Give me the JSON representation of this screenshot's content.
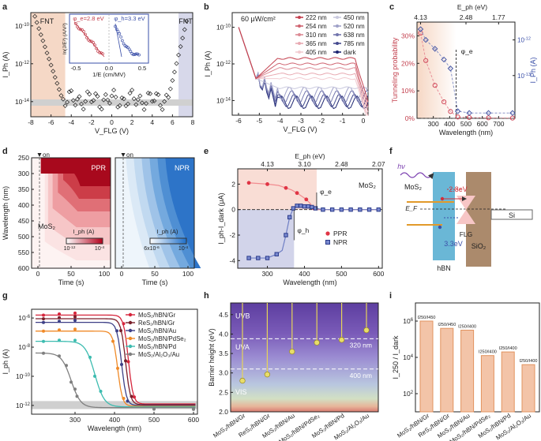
{
  "panel_labels": [
    "a",
    "b",
    "c",
    "d",
    "e",
    "f",
    "g",
    "h",
    "i"
  ],
  "chart_data": [
    {
      "panel": "a",
      "type": "scatter",
      "xlabel": "V_FLG (V)",
      "ylabel": "I_Ph (A)",
      "x_ticks": [
        "-8",
        "-6",
        "-4",
        "-2",
        "0",
        "2",
        "4",
        "6",
        "8"
      ],
      "y_ticks": [
        "10^-10",
        "10^-12",
        "10^-14"
      ],
      "region_labels": [
        "FNT",
        "FNT"
      ],
      "inset": {
        "xlabel": "1/E (cm/MV)",
        "ylabel": "ln(J/E²) (A/V²)",
        "x_ticks": [
          "-0.5",
          "0.0",
          "0.5"
        ],
        "annotations": [
          "φ_e=2.8 eV",
          "φ_h=3.3 eV"
        ]
      }
    },
    {
      "panel": "b",
      "type": "line",
      "xlabel": "V_FLG (V)",
      "ylabel": "I_Ph (A)",
      "x_ticks": [
        "-6",
        "-5",
        "-4",
        "-3",
        "-2",
        "-1",
        "0"
      ],
      "y_ticks": [
        "10^-10",
        "10^-12",
        "10^-14"
      ],
      "annotation": "60 μW/cm²",
      "series": [
        {
          "name": "222 nm",
          "color": "#c3404e",
          "plateau_exp": -11.7
        },
        {
          "name": "254 nm",
          "color": "#cf6370",
          "plateau_exp": -12.0
        },
        {
          "name": "310 nm",
          "color": "#dc8a94",
          "plateau_exp": -12.25
        },
        {
          "name": "365 nm",
          "color": "#e8aab2",
          "plateau_exp": -12.55
        },
        {
          "name": "405 nm",
          "color": "#f2cbd0",
          "plateau_exp": -12.8
        },
        {
          "name": "450 nm",
          "color": "#c9c9de",
          "plateau_exp": -13.3
        },
        {
          "name": "520 nm",
          "color": "#9ea0c8",
          "plateau_exp": -13.6
        },
        {
          "name": "638 nm",
          "color": "#7175ad",
          "plateau_exp": -13.8
        },
        {
          "name": "785 nm",
          "color": "#454b8f",
          "plateau_exp": -14.0
        },
        {
          "name": "dark",
          "color": "#1c2470",
          "plateau_exp": -14.1
        }
      ]
    },
    {
      "panel": "c",
      "type": "line",
      "title": "E_ph (eV)",
      "top_ticks": [
        "4.13",
        "2.48",
        "1.77"
      ],
      "xlabel": "Wavelength (nm)",
      "ylabel": "Tunneling probability",
      "ylabel_right": "I_Ph (A)",
      "x_ticks": [
        "300",
        "400",
        "500",
        "600",
        "700"
      ],
      "y_ticks": [
        "0%",
        "10%",
        "20%",
        "30%"
      ],
      "right_ticks": [
        "10^-12",
        "10^-13"
      ],
      "marker_label": "φ_e",
      "series": [
        {
          "name": "Tunneling probability",
          "color": "#d0495a",
          "x": [
            222,
            254,
            310,
            365,
            405,
            450,
            520,
            638,
            785
          ],
          "y": [
            31,
            21,
            12,
            6,
            2.5,
            0.5,
            0.3,
            0.2,
            0.1
          ]
        },
        {
          "name": "I_Ph",
          "color": "#4a5aa6",
          "x": [
            222,
            254,
            310,
            365,
            405,
            450,
            520,
            638,
            785
          ],
          "y": [
            -11.7,
            -12.0,
            -12.25,
            -12.55,
            -12.8,
            -14.0,
            -14.05,
            -14.05,
            -14.05
          ]
        }
      ]
    },
    {
      "panel": "d",
      "type": "heatmap",
      "ylabel": "Wavelength (nm)",
      "xlabel": "Time (s)",
      "y_ticks": [
        "250",
        "300",
        "350",
        "400",
        "450",
        "500",
        "550",
        "600"
      ],
      "x_ticks": [
        "0",
        "50",
        "100"
      ],
      "left": {
        "label": "PPR",
        "material": "MoS₂",
        "cbar_label": "I_ph (A)",
        "cbar_ticks": [
          "10^-12",
          "10^-4"
        ],
        "on": "on"
      },
      "right": {
        "label": "NPR",
        "cbar_label": "I_ph (A)",
        "cbar_ticks": [
          "6x10^-6",
          "10^-4"
        ],
        "on": "on"
      }
    },
    {
      "panel": "e",
      "type": "scatter",
      "title": "E_ph (eV)",
      "top_ticks": [
        "4.13",
        "3.10",
        "2.48",
        "2.07"
      ],
      "xlabel": "Wavelength (nm)",
      "ylabel": "I_ph-I_dark (μA)",
      "x_ticks": [
        "300",
        "400",
        "500",
        "600"
      ],
      "y_ticks": [
        "2",
        "0",
        "-2",
        "-4"
      ],
      "material": "MoS₂",
      "markers": [
        "φ_e",
        "φ_h"
      ],
      "series": [
        {
          "name": "PPR",
          "color": "#e03545",
          "x": [
            250,
            300,
            330,
            350,
            365,
            380,
            395,
            405,
            415,
            425,
            435,
            450,
            475,
            500,
            525,
            550,
            575,
            600
          ],
          "y": [
            2.1,
            2.0,
            1.9,
            1.7,
            1.55,
            1.3,
            1.0,
            0.8,
            0.5,
            0.1,
            0,
            0,
            0,
            0,
            0,
            0,
            0,
            0
          ]
        },
        {
          "name": "NPR",
          "color": "#3a4fa8",
          "x": [
            250,
            275,
            300,
            325,
            340,
            350,
            360,
            370,
            380,
            390,
            400,
            410,
            420,
            430,
            440,
            450,
            475,
            500,
            525,
            550,
            575,
            600
          ],
          "y": [
            -3.8,
            -3.8,
            -3.8,
            -3.5,
            -3.2,
            -2.0,
            -0.6,
            0.1,
            0.3,
            0.3,
            0.25,
            0.25,
            0.2,
            0.1,
            0.05,
            0,
            0,
            0,
            0,
            0,
            0,
            0
          ]
        }
      ]
    },
    {
      "panel": "g",
      "type": "line",
      "xlabel": "Wavelength (nm)",
      "ylabel": "I_ph (A)",
      "x_ticks": [
        "300",
        "400",
        "500",
        "600"
      ],
      "y_ticks": [
        "10^-6",
        "10^-8",
        "10^-10",
        "10^-12"
      ],
      "series": [
        {
          "name": "MoS₂/hBN/Gr",
          "color": "#d6253c",
          "cutoff": 435
        },
        {
          "name": "ReS₂/hBN/Gr",
          "color": "#7a1f2b",
          "cutoff": 428
        },
        {
          "name": "MoS₂/hBN/Au",
          "color": "#3d3f86",
          "cutoff": 418
        },
        {
          "name": "MoS₂/hBN/PdSe₂",
          "color": "#f08a28",
          "cutoff": 408
        },
        {
          "name": "MoS₂/hBN/Pd",
          "color": "#3dbcb0",
          "cutoff": 350
        },
        {
          "name": "MoS₂/Al₂O₃/Au",
          "color": "#7f7f7f",
          "cutoff": 290
        }
      ]
    },
    {
      "panel": "h",
      "type": "bar",
      "ylabel": "Barrier height (eV)",
      "y_ticks": [
        "2.0",
        "2.5",
        "3.0",
        "3.5",
        "4.0",
        "4.5"
      ],
      "ylim": [
        2.0,
        4.8
      ],
      "bands": [
        "UVB",
        "UVA",
        "VIS"
      ],
      "lines": [
        "320 nm",
        "400 nm"
      ],
      "categories": [
        "MoS₂/hBN/Gr",
        "ReS₂/hBN/Gr",
        "MoS₂/hBN/Au",
        "MoS₂/hBN/PdSe₂",
        "MoS₂/hBN/Pd",
        "MoS₂/Al₂O₃/Au"
      ],
      "values": [
        2.8,
        2.96,
        3.55,
        3.78,
        3.85,
        4.1
      ]
    },
    {
      "panel": "i",
      "type": "bar",
      "ylabel": "I_250 / I_dark",
      "y_ticks": [
        "10^2",
        "10^4",
        "10^6"
      ],
      "categories": [
        "MoS₂/hBN/Gr",
        "ReS₂/hBN/Gr",
        "MoS₂/hBN/Au",
        "MoS₂/hBN/PdSe₂",
        "MoS₂/hBN/Pd",
        "MoS₂/Al₂O₃/Au"
      ],
      "ratio_labels": [
        "I250/I450",
        "I250/I450",
        "I250/I400",
        "I250/I400",
        "I250/I400",
        "I250/I400"
      ],
      "values_log10": [
        6.0,
        5.6,
        5.5,
        4.1,
        4.3,
        3.6
      ]
    }
  ],
  "panel_f": {
    "labels": {
      "hv": "hν",
      "mos2": "MoS₂",
      "ef": "E_F",
      "e": "2.8eV",
      "h": "3.3eV",
      "flg": "FLG",
      "si": "Si",
      "hbn": "hBN",
      "sio2": "SiO₂"
    }
  }
}
